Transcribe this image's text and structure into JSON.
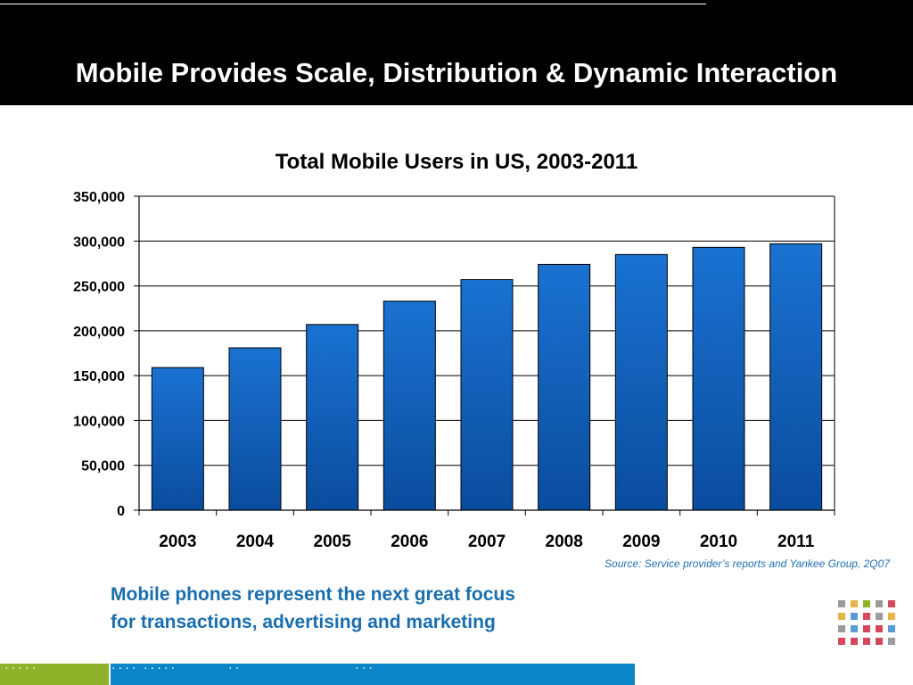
{
  "slide": {
    "title": "Mobile Provides Scale, Distribution & Dynamic Interaction",
    "source": "Source: Service provider’s reports and Yankee Group, 2Q07",
    "tagline_line1": "Mobile phones represent the next great focus",
    "tagline_line2": "for transactions, advertising and marketing"
  },
  "colors": {
    "header_bg": "#000000",
    "bar_top": "#1a72d1",
    "bar_bottom": "#0a4c9e",
    "footer_green": "#8fb22a",
    "footer_blue": "#0b86c8",
    "tagline": "#1a6eae"
  },
  "chart_data": {
    "type": "bar",
    "title": "Total Mobile Users in US, 2003-2011",
    "xlabel": "",
    "ylabel": "",
    "categories": [
      "2003",
      "2004",
      "2005",
      "2006",
      "2007",
      "2008",
      "2009",
      "2010",
      "2011"
    ],
    "values": [
      159000,
      181000,
      207000,
      233000,
      257000,
      274000,
      285000,
      293000,
      297000
    ],
    "ylim": [
      0,
      350000
    ],
    "yticks": [
      0,
      50000,
      100000,
      150000,
      200000,
      250000,
      300000,
      350000
    ],
    "ytick_labels": [
      "0",
      "50,000",
      "100,000",
      "150,000",
      "200,000",
      "250,000",
      "300,000",
      "350,000"
    ],
    "grid": true,
    "legend": "none"
  },
  "logo": {
    "icon": "colored-square-grid-icon",
    "colors": [
      "#9b9b9b",
      "#e5b54a",
      "#8fb22a",
      "#9b9b9b",
      "#d6475c",
      "#e5b54a",
      "#5b9bd5",
      "#d6475c",
      "#9b9b9b",
      "#e5b54a",
      "#9b9b9b",
      "#5b9bd5",
      "#d6475c",
      "#d6475c",
      "#5b9bd5",
      "#d6475c",
      "#d6475c",
      "#d6475c",
      "#d6475c",
      "#9b9b9b"
    ]
  }
}
